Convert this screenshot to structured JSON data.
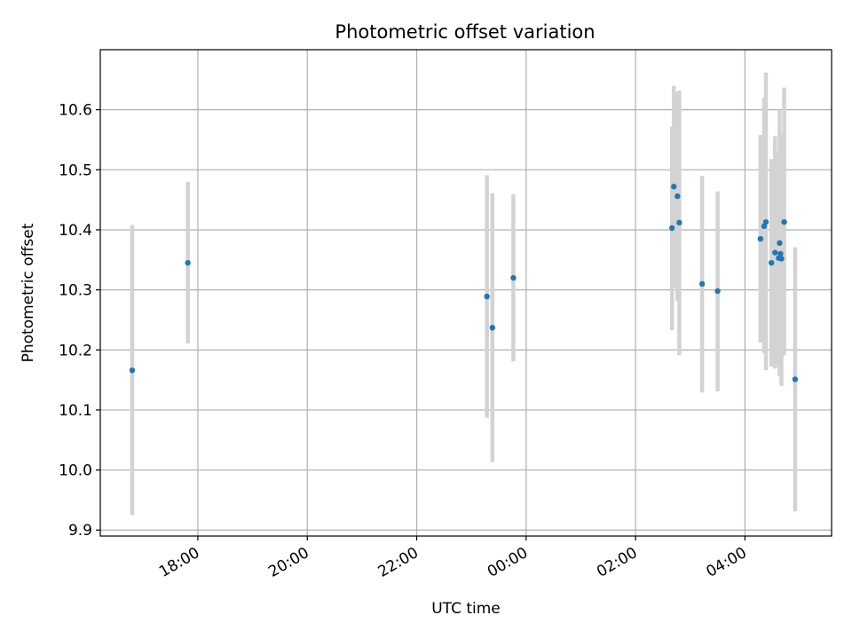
{
  "chart_data": {
    "type": "scatter",
    "title": "Photometric offset variation",
    "xlabel": "UTC time",
    "ylabel": "Photometric offset",
    "x_axis_type": "time",
    "xlim": [
      "16:13",
      "05:35"
    ],
    "ylim": [
      9.89,
      10.7
    ],
    "x_ticks": [
      "18:00",
      "20:00",
      "22:00",
      "00:00",
      "02:00",
      "04:00"
    ],
    "y_ticks": [
      9.9,
      10.0,
      10.1,
      10.2,
      10.3,
      10.4,
      10.5,
      10.6
    ],
    "grid": true,
    "colors": {
      "point": "#1f77b4",
      "errorbar": "#d3d3d3",
      "grid": "#b0b0b0"
    },
    "points": [
      {
        "x": "16:48",
        "y": 10.166,
        "yerr_low": 9.925,
        "yerr_high": 10.408
      },
      {
        "x": "17:49",
        "y": 10.345,
        "yerr_low": 10.211,
        "yerr_high": 10.48
      },
      {
        "x": "23:17",
        "y": 10.289,
        "yerr_low": 10.087,
        "yerr_high": 10.491
      },
      {
        "x": "23:23",
        "y": 10.237,
        "yerr_low": 10.013,
        "yerr_high": 10.461
      },
      {
        "x": "23:46",
        "y": 10.32,
        "yerr_low": 10.181,
        "yerr_high": 10.459
      },
      {
        "x": "02:40",
        "y": 10.403,
        "yerr_low": 10.233,
        "yerr_high": 10.572
      },
      {
        "x": "02:42",
        "y": 10.472,
        "yerr_low": 10.304,
        "yerr_high": 10.64
      },
      {
        "x": "02:46",
        "y": 10.456,
        "yerr_low": 10.282,
        "yerr_high": 10.63
      },
      {
        "x": "02:48",
        "y": 10.412,
        "yerr_low": 10.191,
        "yerr_high": 10.632
      },
      {
        "x": "03:13",
        "y": 10.31,
        "yerr_low": 10.129,
        "yerr_high": 10.49
      },
      {
        "x": "03:30",
        "y": 10.298,
        "yerr_low": 10.131,
        "yerr_high": 10.464
      },
      {
        "x": "04:17",
        "y": 10.385,
        "yerr_low": 10.212,
        "yerr_high": 10.558
      },
      {
        "x": "04:21",
        "y": 10.406,
        "yerr_low": 10.195,
        "yerr_high": 10.62
      },
      {
        "x": "04:23",
        "y": 10.413,
        "yerr_low": 10.166,
        "yerr_high": 10.662
      },
      {
        "x": "04:29",
        "y": 10.345,
        "yerr_low": 10.172,
        "yerr_high": 10.518
      },
      {
        "x": "04:33",
        "y": 10.362,
        "yerr_low": 10.169,
        "yerr_high": 10.556
      },
      {
        "x": "04:37",
        "y": 10.353,
        "yerr_low": 10.175,
        "yerr_high": 10.531
      },
      {
        "x": "04:38",
        "y": 10.378,
        "yerr_low": 10.156,
        "yerr_high": 10.6
      },
      {
        "x": "04:39",
        "y": 10.36,
        "yerr_low": 10.168,
        "yerr_high": 10.555
      },
      {
        "x": "04:40",
        "y": 10.352,
        "yerr_low": 10.14,
        "yerr_high": 10.56
      },
      {
        "x": "04:43",
        "y": 10.413,
        "yerr_low": 10.191,
        "yerr_high": 10.637
      },
      {
        "x": "04:55",
        "y": 10.151,
        "yerr_low": 9.931,
        "yerr_high": 10.371
      }
    ]
  }
}
